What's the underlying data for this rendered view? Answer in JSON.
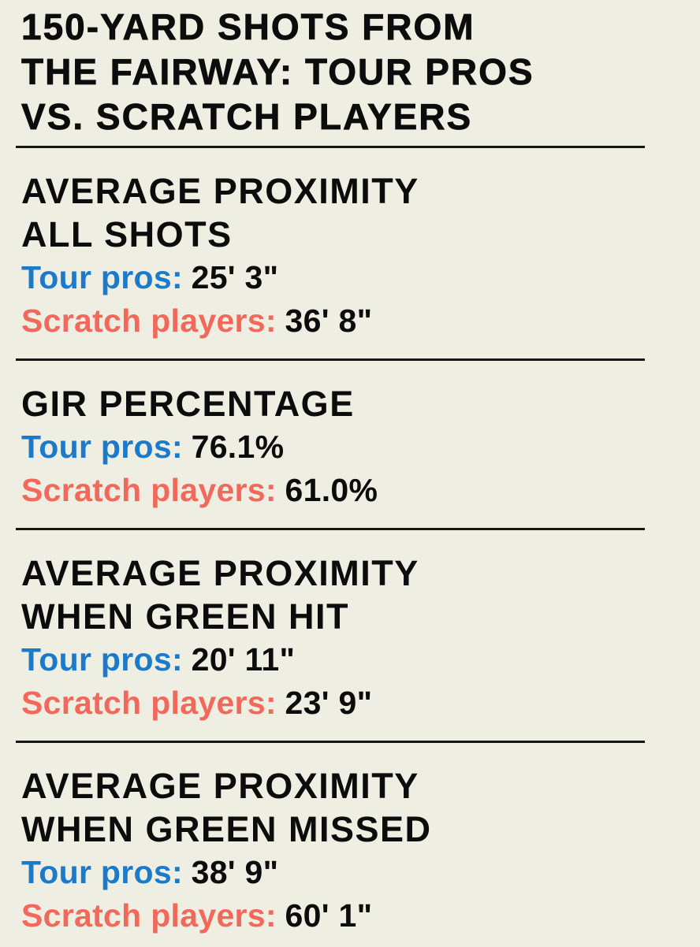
{
  "theme": {
    "bg": "#efeee2",
    "ink": "#0c0c0c",
    "blue": "#1b7ac9",
    "red": "#f2695c",
    "rule": "#161616"
  },
  "title": {
    "lines": [
      "150-YARD SHOTS FROM",
      "THE FAIRWAY: TOUR PROS",
      "VS. SCRATCH PLAYERS"
    ]
  },
  "sections": [
    {
      "heading_lines": [
        "AVERAGE PROXIMITY",
        "ALL SHOTS"
      ],
      "rows": [
        {
          "label": "Tour pros:",
          "value": "25' 3\""
        },
        {
          "label": "Scratch players:",
          "value": "36' 8\""
        }
      ]
    },
    {
      "heading_lines": [
        "GIR PERCENTAGE"
      ],
      "rows": [
        {
          "label": "Tour pros:",
          "value": "76.1%"
        },
        {
          "label": "Scratch players:",
          "value": "61.0%"
        }
      ]
    },
    {
      "heading_lines": [
        "AVERAGE PROXIMITY",
        "WHEN GREEN HIT"
      ],
      "rows": [
        {
          "label": "Tour pros:",
          "value": "20' 11\""
        },
        {
          "label": "Scratch players:",
          "value": "23' 9\""
        }
      ]
    },
    {
      "heading_lines": [
        "AVERAGE PROXIMITY",
        "WHEN GREEN MISSED"
      ],
      "rows": [
        {
          "label": "Tour pros:",
          "value": "38' 9\""
        },
        {
          "label": "Scratch players:",
          "value": "60' 1\""
        }
      ]
    }
  ],
  "chart_data": {
    "type": "table",
    "title": "150-YARD SHOTS FROM THE FAIRWAY: TOUR PROS VS. SCRATCH PLAYERS",
    "categories": [
      "Average proximity all shots",
      "GIR percentage",
      "Average proximity when green hit",
      "Average proximity when green missed"
    ],
    "series": [
      {
        "name": "Tour pros",
        "values": [
          "25' 3\"",
          "76.1%",
          "20' 11\"",
          "38' 9\""
        ]
      },
      {
        "name": "Scratch players",
        "values": [
          "36' 8\"",
          "61.0%",
          "23' 9\"",
          "60' 1\""
        ]
      }
    ],
    "legend_position": "inline",
    "grid": false
  }
}
